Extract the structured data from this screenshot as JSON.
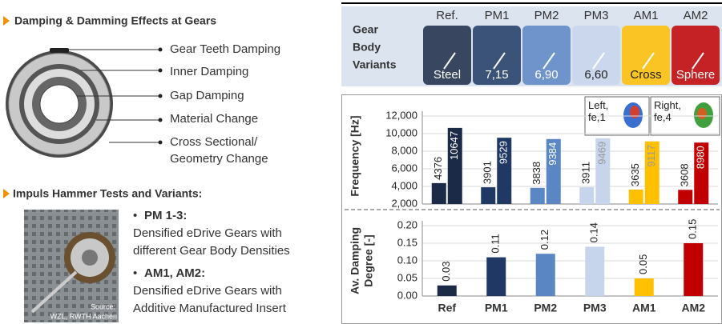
{
  "damping_section": {
    "title": "Damping & Damming Effects at Gears",
    "labels": [
      "Gear Teeth Damping",
      "Inner Damping",
      "Gap Damping",
      "Material Change",
      "Cross Sectional/",
      "Geometry Change"
    ]
  },
  "tests_section": {
    "title": "Impuls Hammer Tests and Variants:",
    "items": [
      {
        "head": "PM 1-3:",
        "lines": [
          "Densified eDrive Gears with",
          "different Gear Body Densities"
        ]
      },
      {
        "head": "AM1, AM2:",
        "lines": [
          "Densified eDrive Gears with",
          "Additive Manufactured Insert"
        ]
      }
    ],
    "photo_source_lines": [
      "Source:",
      "WZL, RWTH Aachen"
    ]
  },
  "variants": {
    "header_lines": [
      "Gear",
      "Body",
      "Variants"
    ],
    "columns": [
      "Ref.",
      "PM1",
      "PM2",
      "PM3",
      "AM1",
      "AM2"
    ],
    "labels": [
      "Steel",
      "7,15",
      "6,90",
      "6,60",
      "Cross",
      "Sphere"
    ]
  },
  "chart_data": [
    {
      "type": "bar",
      "y_label": "Frequency [Hz]",
      "ylim": [
        2000,
        12000
      ],
      "yticks": [
        {
          "value": 2000,
          "label": "2,000"
        },
        {
          "value": 4000,
          "label": "4,000"
        },
        {
          "value": 6000,
          "label": "6,000"
        },
        {
          "value": 8000,
          "label": "8,000"
        },
        {
          "value": 10000,
          "label": "10,000"
        },
        {
          "value": 12000,
          "label": "12,000"
        }
      ],
      "grid": true,
      "colors": [
        "#1b2a47",
        "#1f3864",
        "#5b86c4",
        "#c7d5ec",
        "#ffc000",
        "#c00000"
      ],
      "series": [
        {
          "name": "Left, fe,1",
          "values": [
            4376,
            3901,
            3838,
            3911,
            3635,
            3608
          ]
        },
        {
          "name": "Right, fe,4",
          "values": [
            10647,
            9529,
            9384,
            9469,
            9117,
            8980
          ]
        }
      ]
    },
    {
      "type": "bar",
      "y_label_lines": [
        "Av. Damping",
        "Degree [-]"
      ],
      "categories": [
        "Ref",
        "PM1",
        "PM2",
        "PM3",
        "AM1",
        "AM2"
      ],
      "ylim": [
        0,
        0.2
      ],
      "yticks": [
        {
          "value": 0,
          "label": "0.00"
        },
        0.05,
        {
          "value": 0.1,
          "label": "0.10"
        },
        0.15,
        {
          "value": 0.2,
          "label": "0.20"
        }
      ],
      "grid": true,
      "colors": [
        "#1b2a47",
        "#1f3864",
        "#5b86c4",
        "#c7d5ec",
        "#ffc000",
        "#c00000"
      ],
      "values": [
        0.03,
        0.11,
        0.12,
        0.14,
        0.05,
        0.15
      ]
    }
  ]
}
